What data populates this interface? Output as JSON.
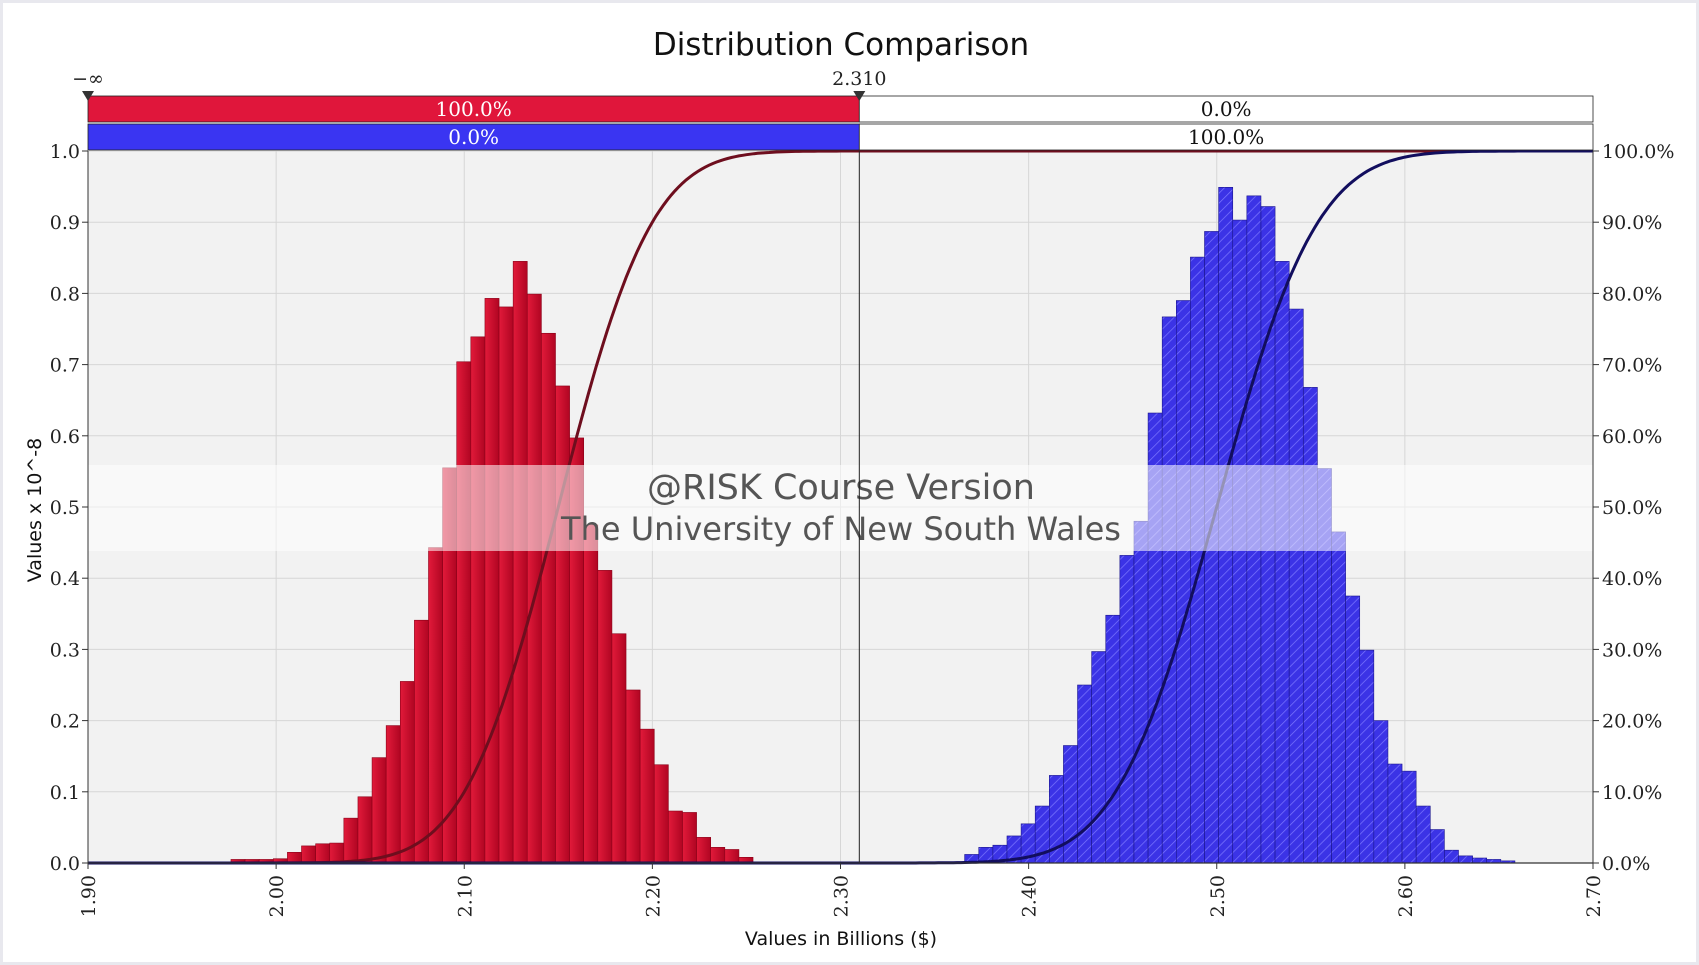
{
  "chart_data": {
    "type": "bar",
    "title": "Distribution Comparison",
    "xlabel": "Values in Billions ($)",
    "ylabel": "Values x 10^-8",
    "xlim": [
      1.9,
      2.7
    ],
    "ylim": [
      0.0,
      1.0
    ],
    "y2lim": [
      0.0,
      100.0
    ],
    "x_ticks": [
      "1.90",
      "2.00",
      "2.10",
      "2.20",
      "2.30",
      "2.40",
      "2.50",
      "2.60",
      "2.70"
    ],
    "y_ticks": [
      "0.0",
      "0.1",
      "0.2",
      "0.3",
      "0.4",
      "0.5",
      "0.6",
      "0.7",
      "0.8",
      "0.9",
      "1.0"
    ],
    "y2_ticks": [
      "0.0%",
      "10.0%",
      "20.0%",
      "30.0%",
      "40.0%",
      "50.0%",
      "60.0%",
      "70.0%",
      "80.0%",
      "90.0%",
      "100.0%"
    ],
    "grid": true,
    "delimiter": {
      "left_label": "−∞",
      "right_label": "2.310",
      "value": 2.31,
      "rows": [
        {
          "left": "100.0%",
          "right": "0.0%"
        },
        {
          "left": "0.0%",
          "right": "100.0%"
        }
      ]
    },
    "series": [
      {
        "color": "#cc0a2a",
        "edge_color": "#8a0018",
        "curve_color": "#6e0e1e",
        "bin_width": 0.0075,
        "bins": [
          [
            1.976,
            0.005
          ],
          [
            1.9835,
            0.005
          ],
          [
            1.991,
            0.005
          ],
          [
            1.9985,
            0.006
          ],
          [
            2.006,
            0.015
          ],
          [
            2.0135,
            0.024
          ],
          [
            2.021,
            0.027
          ],
          [
            2.0285,
            0.028
          ],
          [
            2.036,
            0.063
          ],
          [
            2.0435,
            0.093
          ],
          [
            2.051,
            0.148
          ],
          [
            2.0585,
            0.193
          ],
          [
            2.066,
            0.255
          ],
          [
            2.0735,
            0.341
          ],
          [
            2.081,
            0.443
          ],
          [
            2.0885,
            0.555
          ],
          [
            2.096,
            0.704
          ],
          [
            2.1035,
            0.739
          ],
          [
            2.111,
            0.793
          ],
          [
            2.1185,
            0.781
          ],
          [
            2.126,
            0.845
          ],
          [
            2.1335,
            0.799
          ],
          [
            2.141,
            0.744
          ],
          [
            2.1485,
            0.67
          ],
          [
            2.156,
            0.597
          ],
          [
            2.1635,
            0.475
          ],
          [
            2.171,
            0.411
          ],
          [
            2.1785,
            0.322
          ],
          [
            2.186,
            0.243
          ],
          [
            2.1935,
            0.188
          ],
          [
            2.201,
            0.138
          ],
          [
            2.2085,
            0.073
          ],
          [
            2.216,
            0.071
          ],
          [
            2.2235,
            0.036
          ],
          [
            2.231,
            0.022
          ],
          [
            2.2385,
            0.019
          ],
          [
            2.246,
            0.008
          ]
        ],
        "cdf_mu": 2.15,
        "cdf_sigma": 0.039
      },
      {
        "color": "#3b33e6",
        "edge_color": "#1a158c",
        "curve_color": "#120e5e",
        "bin_width": 0.0075,
        "bins": [
          [
            2.366,
            0.012
          ],
          [
            2.3735,
            0.022
          ],
          [
            2.381,
            0.025
          ],
          [
            2.3885,
            0.038
          ],
          [
            2.396,
            0.055
          ],
          [
            2.4035,
            0.08
          ],
          [
            2.411,
            0.123
          ],
          [
            2.4185,
            0.165
          ],
          [
            2.426,
            0.25
          ],
          [
            2.4335,
            0.297
          ],
          [
            2.441,
            0.348
          ],
          [
            2.4485,
            0.432
          ],
          [
            2.456,
            0.48
          ],
          [
            2.4635,
            0.632
          ],
          [
            2.471,
            0.767
          ],
          [
            2.4785,
            0.79
          ],
          [
            2.486,
            0.851
          ],
          [
            2.4935,
            0.887
          ],
          [
            2.501,
            0.949
          ],
          [
            2.5085,
            0.903
          ],
          [
            2.516,
            0.937
          ],
          [
            2.5235,
            0.922
          ],
          [
            2.531,
            0.845
          ],
          [
            2.5385,
            0.778
          ],
          [
            2.546,
            0.668
          ],
          [
            2.5535,
            0.554
          ],
          [
            2.561,
            0.465
          ],
          [
            2.5685,
            0.375
          ],
          [
            2.576,
            0.299
          ],
          [
            2.5835,
            0.2
          ],
          [
            2.591,
            0.139
          ],
          [
            2.5985,
            0.129
          ],
          [
            2.606,
            0.08
          ],
          [
            2.6135,
            0.047
          ],
          [
            2.621,
            0.018
          ],
          [
            2.6285,
            0.01
          ],
          [
            2.636,
            0.007
          ],
          [
            2.6435,
            0.005
          ],
          [
            2.651,
            0.003
          ]
        ],
        "cdf_mu": 2.5,
        "cdf_sigma": 0.042
      }
    ]
  },
  "watermark": {
    "line1": "@RISK Course Version",
    "line2": "The University of New South Wales"
  }
}
